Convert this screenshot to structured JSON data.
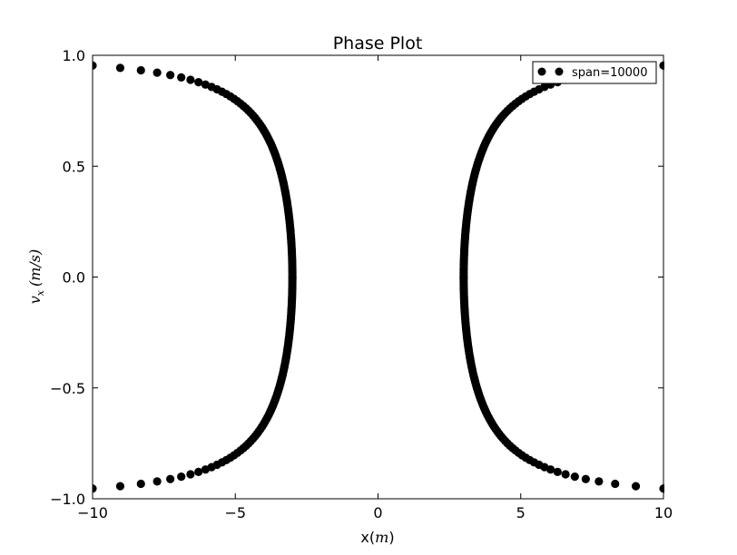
{
  "chart_data": {
    "type": "scatter",
    "title": "Phase Plot",
    "xlabel": "x(m)",
    "xlabel_parts": [
      "x(",
      "m",
      ")"
    ],
    "ylabel": "v_x (m/s)",
    "ylabel_parts": {
      "v": "v",
      "sub": "x",
      "rest": "(m/s)"
    },
    "xlim": [
      -10,
      10
    ],
    "ylim": [
      -1.0,
      1.0
    ],
    "xticks": [
      -10,
      -5,
      0,
      5,
      10
    ],
    "xtick_labels": [
      "−10",
      "−5",
      "0",
      "5",
      "10"
    ],
    "yticks": [
      -1.0,
      -0.5,
      0.0,
      0.5,
      1.0
    ],
    "ytick_labels": [
      "−1.0",
      "−0.5",
      "0.0",
      "0.5",
      "1.0"
    ],
    "legend": {
      "label": "span=10000",
      "location": "top-right"
    },
    "series": [
      {
        "name": "span=10000",
        "color": "#000000",
        "curve_description": "v^2 = 1 - 9/x^2 for |x| between 3 and 10",
        "x_min_abs": 3,
        "x_max_abs": 10,
        "sample_count": 90
      }
    ]
  }
}
